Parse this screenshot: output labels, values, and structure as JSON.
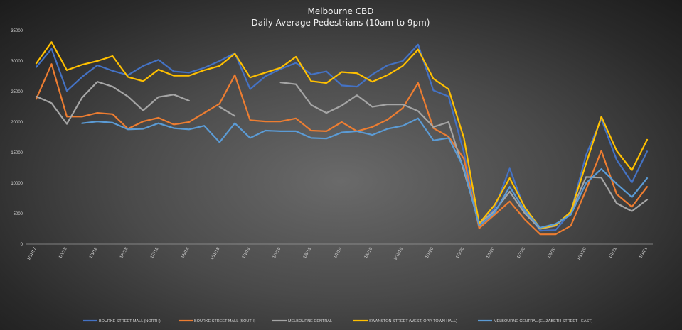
{
  "chart_data": {
    "type": "line",
    "title": "Melbourne CBD",
    "subtitle": "Daily Average Pedestrians (10am to 9pm)",
    "ylim": [
      0,
      35000
    ],
    "yticks": [
      0,
      5000,
      10000,
      15000,
      20000,
      25000,
      30000,
      35000
    ],
    "grid": false,
    "legend_position": "bottom",
    "categories": [
      "1/11/17",
      "1/12/17",
      "1/1/18",
      "1/2/18",
      "1/3/18",
      "1/4/18",
      "1/5/18",
      "1/6/18",
      "1/7/18",
      "1/8/18",
      "1/9/18",
      "1/10/18",
      "1/11/18",
      "1/12/18",
      "1/1/19",
      "1/2/19",
      "1/3/19",
      "1/4/19",
      "1/5/19",
      "1/6/19",
      "1/7/19",
      "1/8/19",
      "1/9/19",
      "1/10/19",
      "1/11/19",
      "1/12/19",
      "1/1/20",
      "1/2/20",
      "1/3/20",
      "1/4/20",
      "1/5/20",
      "1/6/20",
      "1/7/20",
      "1/8/20",
      "1/9/20",
      "1/10/20",
      "1/11/20",
      "1/12/20",
      "1/1/21",
      "1/2/21",
      "1/3/21"
    ],
    "category_labels": [
      "1/11/17",
      "1/12/17",
      "1/1/18",
      "1/2/18",
      "1/3/18",
      "1/4/18",
      "1/5/18",
      "1/6/18",
      "1/7/18",
      "1/8/18",
      "1/9/18",
      "1/10/18",
      "1/11/18",
      "1/12/18",
      "1/1/19",
      "1/2/19",
      "1/3/19",
      "1/4/19",
      "1/5/19",
      "1/6/19",
      "1/7/19",
      "1/8/19",
      "1/9/19",
      "1/10/19",
      "1/11/19",
      "1/12/19",
      "1/1/20",
      "1/2/20",
      "1/3/20",
      "1/4/20",
      "1/5/20",
      "1/6/20",
      "1/7/20",
      "1/8/20",
      "1/9/20",
      "1/10/20",
      "1/11/20",
      "1/12/20",
      "1/1/21",
      "1/2/21",
      "1/3/21"
    ],
    "label_step": 2,
    "series": [
      {
        "name": "BOURKE STREET MALL (NORTH)",
        "color": "#4472c4",
        "values": [
          29000,
          32000,
          25100,
          27400,
          29300,
          28400,
          27700,
          29200,
          30200,
          28300,
          28100,
          28900,
          30000,
          31300,
          25400,
          27500,
          28700,
          29700,
          27800,
          28300,
          26000,
          25800,
          27800,
          29300,
          30000,
          32700,
          25200,
          24200,
          15000,
          3200,
          5800,
          12400,
          5600,
          2200,
          2300,
          5200,
          14600,
          20500,
          13800,
          10100,
          15200
        ]
      },
      {
        "name": "BOURKE STREET MALL (SOUTH)",
        "color": "#ed7d31",
        "values": [
          23800,
          29500,
          20900,
          20900,
          21500,
          21300,
          18900,
          20100,
          20700,
          19600,
          20000,
          21500,
          23000,
          27700,
          20300,
          20100,
          20100,
          20600,
          18600,
          18500,
          20000,
          18500,
          19200,
          20400,
          22300,
          26400,
          19000,
          17600,
          14000,
          2600,
          4800,
          7000,
          4000,
          1600,
          1600,
          3000,
          8900,
          15300,
          8200,
          6100,
          9400
        ]
      },
      {
        "name": "MELBOURNE CENTRAL",
        "color": "#a5a5a5",
        "values": [
          24200,
          23100,
          19700,
          24000,
          26600,
          25800,
          24200,
          21900,
          24100,
          24500,
          23500,
          null,
          22500,
          21000,
          null,
          null,
          26500,
          26200,
          22800,
          21500,
          22700,
          24400,
          22500,
          22900,
          22900,
          21800,
          19200,
          20000,
          12000,
          3400,
          5400,
          8600,
          5000,
          2500,
          3000,
          5200,
          11000,
          10900,
          6700,
          5400,
          7300
        ]
      },
      {
        "name": "SWANSTON STREET (WEST, OPP. TOWN HALL)",
        "color": "#ffc000",
        "values": [
          29600,
          33100,
          28500,
          29400,
          30000,
          30800,
          27400,
          26700,
          28600,
          27600,
          27600,
          28500,
          29200,
          31200,
          27300,
          28100,
          28900,
          30700,
          26700,
          26400,
          28200,
          28000,
          26600,
          27700,
          29200,
          31900,
          27100,
          25400,
          17400,
          3400,
          6400,
          10800,
          6000,
          2600,
          3100,
          5300,
          13200,
          20900,
          15300,
          12100,
          17100
        ]
      },
      {
        "name": "MELBOURNE CENTRAL (ELIZABETH STREET - EAST)",
        "color": "#5b9bd5",
        "values": [
          null,
          null,
          null,
          19800,
          20100,
          19900,
          18800,
          18900,
          19800,
          19000,
          18800,
          19400,
          16700,
          19800,
          17400,
          18600,
          18500,
          18500,
          17400,
          17300,
          18300,
          18500,
          17900,
          18900,
          19400,
          20600,
          17000,
          17400,
          12500,
          3000,
          5100,
          9400,
          5400,
          2700,
          3300,
          4800,
          10000,
          12300,
          9900,
          7700,
          10800
        ]
      }
    ]
  }
}
